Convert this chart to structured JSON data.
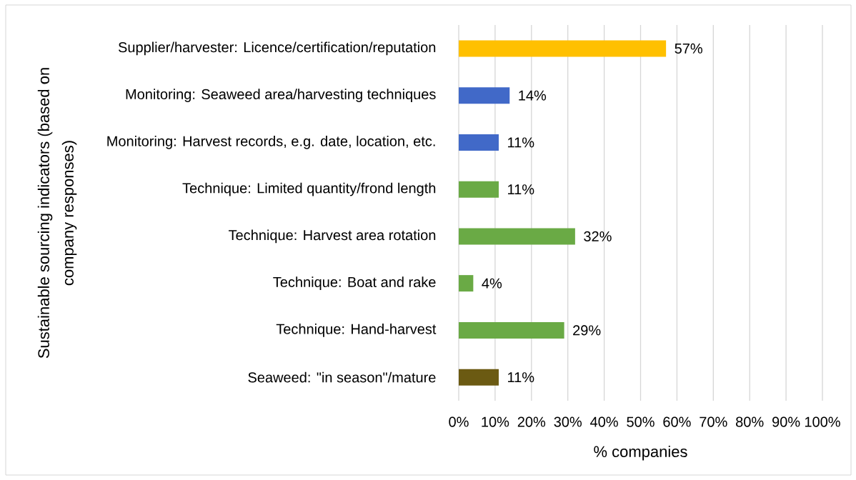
{
  "chart_data": {
    "type": "bar",
    "orientation": "horizontal",
    "ylabel": "Sustainable sourcing indicators (based on company responses)",
    "xlabel": "% companies",
    "categories": [
      "Supplier/harvester: Licence/certification/reputation",
      "Monitoring: Seaweed area/harvesting techniques",
      "Monitoring: Harvest records, e.g. date, location, etc.",
      "Technique: Limited quantity/frond length",
      "Technique: Harvest area rotation",
      "Technique: Boat and rake",
      "Technique: Hand-harvest",
      "Seaweed: \"in season\"/mature"
    ],
    "values": [
      57,
      14,
      11,
      11,
      32,
      4,
      29,
      11
    ],
    "colors": [
      "#FFC000",
      "#4169C8",
      "#4169C8",
      "#6AAA45",
      "#6AAA45",
      "#6AAA45",
      "#6AAA45",
      "#6B5A12"
    ],
    "value_labels": [
      "57%",
      "14%",
      "11%",
      "11%",
      "32%",
      "4%",
      "29%",
      "11%"
    ],
    "xlim": [
      0,
      100
    ],
    "xticks": [
      {
        "value": 0,
        "label": "0%"
      },
      {
        "value": 10,
        "label": "10%"
      },
      {
        "value": 20,
        "label": "20%"
      },
      {
        "value": 30,
        "label": "30%"
      },
      {
        "value": 40,
        "label": "40%"
      },
      {
        "value": 50,
        "label": "50%"
      },
      {
        "value": 60,
        "label": "60%"
      },
      {
        "value": 70,
        "label": "70%"
      },
      {
        "value": 80,
        "label": "80%"
      },
      {
        "value": 90,
        "label": "90%"
      },
      {
        "value": 100,
        "label": "100%"
      }
    ],
    "grid": "x"
  }
}
